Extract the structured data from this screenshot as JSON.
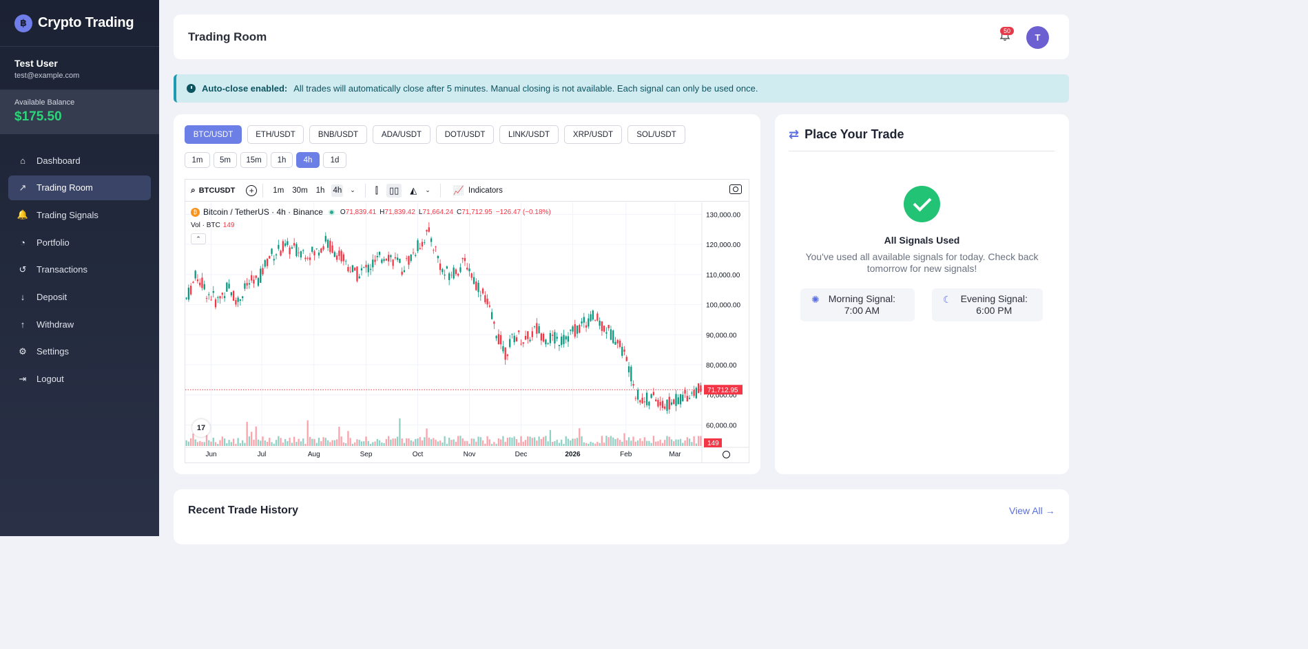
{
  "brand": {
    "title": "Crypto Trading",
    "logo_glyph": "฿"
  },
  "user": {
    "name": "Test User",
    "email": "test@example.com"
  },
  "balance": {
    "label": "Available Balance",
    "value": "$175.50"
  },
  "nav": [
    {
      "label": "Dashboard",
      "icon": "home-icon",
      "glyph": "⌂"
    },
    {
      "label": "Trading Room",
      "icon": "chart-line-icon",
      "glyph": "↗",
      "active": true
    },
    {
      "label": "Trading Signals",
      "icon": "bell-icon",
      "glyph": "🔔"
    },
    {
      "label": "Portfolio",
      "icon": "pie-chart-icon",
      "glyph": "◔"
    },
    {
      "label": "Transactions",
      "icon": "history-icon",
      "glyph": "↺"
    },
    {
      "label": "Deposit",
      "icon": "arrow-down-icon",
      "glyph": "↓"
    },
    {
      "label": "Withdraw",
      "icon": "arrow-up-icon",
      "glyph": "↑"
    },
    {
      "label": "Settings",
      "icon": "gear-icon",
      "glyph": "⚙"
    },
    {
      "label": "Logout",
      "icon": "logout-icon",
      "glyph": "⇥"
    }
  ],
  "header": {
    "title": "Trading Room",
    "notifications": "50",
    "avatar_initial": "T"
  },
  "alert": {
    "strong": "Auto-close enabled:",
    "text": "All trades will automatically close after 5 minutes. Manual closing is not available. Each signal can only be used once."
  },
  "pairs": [
    "BTC/USDT",
    "ETH/USDT",
    "BNB/USDT",
    "ADA/USDT",
    "DOT/USDT",
    "LINK/USDT",
    "XRP/USDT",
    "SOL/USDT"
  ],
  "active_pair": "BTC/USDT",
  "timeframes": [
    "1m",
    "5m",
    "15m",
    "1h",
    "4h",
    "1d"
  ],
  "active_timeframe": "4h",
  "tv": {
    "symbol": "BTCUSDT",
    "intervals": [
      "1m",
      "30m",
      "1h",
      "4h"
    ],
    "active_interval": "4h",
    "indicators_label": "Indicators",
    "legend_title": "Bitcoin / TetherUS · 4h · Binance",
    "ohlc": {
      "o_label": "O",
      "o": "71,839.41",
      "h_label": "H",
      "h": "71,839.42",
      "l_label": "L",
      "l": "71,664.24",
      "c_label": "C",
      "c": "71,712.95",
      "change": "−126.47 (−0.18%)"
    },
    "vol_label": "Vol · BTC",
    "vol_value": "149",
    "logo": "17"
  },
  "chart_data": {
    "type": "candlestick",
    "y_ticks": [
      "130,000.00",
      "120,000.00",
      "110,000.00",
      "100,000.00",
      "90,000.00",
      "80,000.00",
      "70,000.00",
      "60,000.00"
    ],
    "y_tick_values": [
      130000,
      120000,
      110000,
      100000,
      90000,
      80000,
      70000,
      60000
    ],
    "ylim": [
      53000,
      134000
    ],
    "x_ticks": [
      "Jun",
      "Jul",
      "Aug",
      "Sep",
      "Oct",
      "Nov",
      "Dec",
      "2026",
      "Feb",
      "Mar"
    ],
    "x_tick_bold": "2026",
    "x_tick_positions": [
      0.05,
      0.148,
      0.249,
      0.35,
      0.45,
      0.55,
      0.65,
      0.75,
      0.853,
      0.948
    ],
    "price_path": [
      [
        0.0,
        102000
      ],
      [
        0.02,
        110000
      ],
      [
        0.04,
        104000
      ],
      [
        0.06,
        101000
      ],
      [
        0.08,
        106000
      ],
      [
        0.1,
        101000
      ],
      [
        0.12,
        107000
      ],
      [
        0.14,
        108000
      ],
      [
        0.16,
        116000
      ],
      [
        0.19,
        119000
      ],
      [
        0.22,
        118000
      ],
      [
        0.25,
        117000
      ],
      [
        0.27,
        121000
      ],
      [
        0.3,
        116000
      ],
      [
        0.33,
        110000
      ],
      [
        0.36,
        113000
      ],
      [
        0.39,
        117000
      ],
      [
        0.42,
        112000
      ],
      [
        0.445,
        118000
      ],
      [
        0.47,
        124000
      ],
      [
        0.485,
        118000
      ],
      [
        0.5,
        110000
      ],
      [
        0.52,
        111000
      ],
      [
        0.545,
        114000
      ],
      [
        0.56,
        108000
      ],
      [
        0.58,
        103000
      ],
      [
        0.6,
        92000
      ],
      [
        0.62,
        84000
      ],
      [
        0.64,
        90000
      ],
      [
        0.66,
        88000
      ],
      [
        0.68,
        92000
      ],
      [
        0.7,
        89000
      ],
      [
        0.73,
        88000
      ],
      [
        0.76,
        92000
      ],
      [
        0.79,
        96000
      ],
      [
        0.81,
        93000
      ],
      [
        0.84,
        88000
      ],
      [
        0.86,
        80000
      ],
      [
        0.875,
        70000
      ],
      [
        0.89,
        68000
      ],
      [
        0.91,
        69000
      ],
      [
        0.93,
        66000
      ],
      [
        0.95,
        68000
      ],
      [
        0.97,
        70000
      ],
      [
        1.0,
        71700
      ]
    ],
    "last_price_label": "71,712.95",
    "last_price_value": 71712.95,
    "volume_label": "149",
    "volume_max": 500
  },
  "trade": {
    "title": "Place Your Trade",
    "status_title": "All Signals Used",
    "status_desc": "You've used all available signals for today. Check back tomorrow for new signals!",
    "morning": {
      "label": "Morning Signal:",
      "time": "7:00 AM"
    },
    "evening": {
      "label": "Evening Signal:",
      "time": "6:00 PM"
    }
  },
  "recent": {
    "title": "Recent Trade History",
    "view_all": "View All →"
  }
}
